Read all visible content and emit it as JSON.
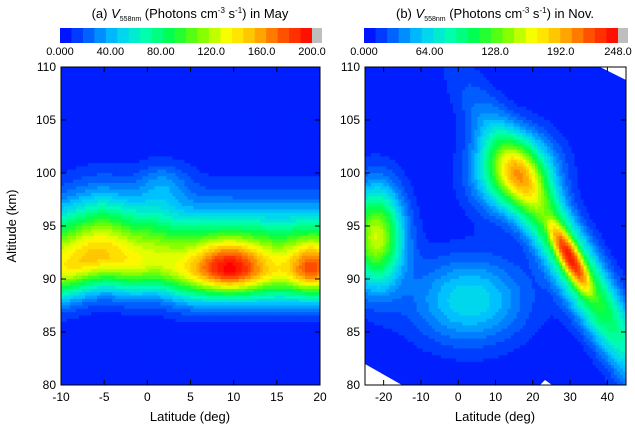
{
  "chart_data": [
    {
      "type": "heatmap",
      "panel_label": "(a)",
      "title_var": "V",
      "title_sub": "558nm",
      "title_mid": " (Photons cm",
      "title_sup1": "-3",
      "title_mid2": " s",
      "title_sup2": "-1",
      "title_end": ") in May",
      "xlabel": "Latitude (deg)",
      "ylabel": "Altitude (km)",
      "xlim": [
        -10,
        20
      ],
      "ylim": [
        80,
        110
      ],
      "x_ticks": [
        "-10",
        "-5",
        "0",
        "5",
        "10",
        "15",
        "20"
      ],
      "x_tick_values": [
        -10,
        -5,
        0,
        5,
        10,
        15,
        20
      ],
      "y_ticks": [
        "80",
        "85",
        "90",
        "95",
        "100",
        "105",
        "110"
      ],
      "y_tick_values": [
        80,
        85,
        90,
        95,
        100,
        105,
        110
      ],
      "colorbar_range": [
        0,
        200
      ],
      "colorbar_ticks": [
        "0.000",
        "40.00",
        "80.00",
        "120.0",
        "160.0",
        "200.0"
      ],
      "colorbar_tick_values": [
        0,
        40,
        80,
        120,
        160,
        200
      ],
      "peak": {
        "lat": 9,
        "alt": 91,
        "value": 195
      }
    },
    {
      "type": "heatmap",
      "panel_label": "(b)",
      "title_var": "V",
      "title_sub": "558nm",
      "title_mid": " (Photons cm",
      "title_sup1": "-3",
      "title_mid2": " s",
      "title_sup2": "-1",
      "title_end": ") in Nov.",
      "xlabel": "Latitude (deg)",
      "ylabel": "",
      "xlim": [
        -25,
        45
      ],
      "ylim": [
        80,
        110
      ],
      "x_ticks": [
        "-20",
        "-10",
        "0",
        "10",
        "20",
        "30",
        "40"
      ],
      "x_tick_values": [
        -20,
        -10,
        0,
        10,
        20,
        30,
        40
      ],
      "y_ticks": [
        "80",
        "85",
        "90",
        "95",
        "100",
        "105",
        "110"
      ],
      "y_tick_values": [
        80,
        85,
        90,
        95,
        100,
        105,
        110
      ],
      "colorbar_range": [
        0,
        248
      ],
      "colorbar_ticks": [
        "0.000",
        "64.00",
        "128.0",
        "192.0",
        "248.0"
      ],
      "colorbar_tick_values": [
        0,
        64,
        128,
        192,
        248
      ],
      "peak": {
        "lat": 30,
        "alt": 92,
        "value": 240
      }
    }
  ],
  "colors": {
    "scale": [
      "#0000ff",
      "#0060ff",
      "#00c8ff",
      "#00ffb4",
      "#00ff46",
      "#78ff00",
      "#ffff00",
      "#ffb400",
      "#ff5000",
      "#ff0000"
    ],
    "overflow": "#bebebe",
    "contour_line": "#000000",
    "mask": "#ffffff"
  }
}
